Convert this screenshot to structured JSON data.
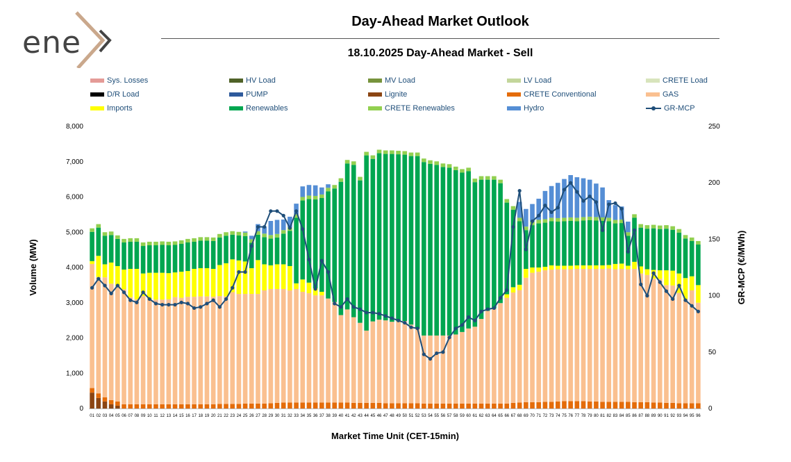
{
  "logo": {
    "text": "ene"
  },
  "header": {
    "title": "Day-Ahead Market Outlook",
    "subtitle": "18.10.2025  Day-Ahead Market - Sell"
  },
  "legend": [
    {
      "label": "Sys. Losses",
      "color": "#e49b97",
      "kind": "bar"
    },
    {
      "label": "HV Load",
      "color": "#4f6228",
      "kind": "bar"
    },
    {
      "label": "MV Load",
      "color": "#77933c",
      "kind": "bar"
    },
    {
      "label": "LV Load",
      "color": "#c3d69b",
      "kind": "bar"
    },
    {
      "label": "CRETE Load",
      "color": "#d8e4bc",
      "kind": "bar"
    },
    {
      "label": "D/R Load",
      "color": "#000000",
      "kind": "bar"
    },
    {
      "label": "PUMP",
      "color": "#2e5a9c",
      "kind": "bar"
    },
    {
      "label": "Lignite",
      "color": "#8b4513",
      "kind": "bar"
    },
    {
      "label": "CRETE Conventional",
      "color": "#e46c0a",
      "kind": "bar"
    },
    {
      "label": "GAS",
      "color": "#fac090",
      "kind": "bar"
    },
    {
      "label": "Imports",
      "color": "#ffff00",
      "kind": "bar"
    },
    {
      "label": "Renewables",
      "color": "#00a650",
      "kind": "bar"
    },
    {
      "label": "CRETE Renewables",
      "color": "#92d050",
      "kind": "bar"
    },
    {
      "label": "Hydro",
      "color": "#558ed5",
      "kind": "bar"
    },
    {
      "label": "GR-MCP",
      "color": "#1f4e79",
      "kind": "line"
    }
  ],
  "chart_data": {
    "type": "bar",
    "stacked": true,
    "xlabel": "Market Time Unit (CET-15min)",
    "ylabel": "Volume (MW)",
    "y2label": "GR-MCP (€/MWh)",
    "ylim": [
      0,
      8000
    ],
    "yticks": [
      "0",
      "1,000",
      "2,000",
      "3,000",
      "4,000",
      "5,000",
      "6,000",
      "7,000",
      "8,000"
    ],
    "y2lim": [
      0,
      250
    ],
    "y2ticks": [
      "0",
      "50",
      "100",
      "150",
      "200",
      "250"
    ],
    "categories": [
      "01",
      "02",
      "03",
      "04",
      "05",
      "06",
      "07",
      "08",
      "09",
      "10",
      "11",
      "12",
      "13",
      "14",
      "15",
      "16",
      "17",
      "18",
      "19",
      "20",
      "21",
      "22",
      "23",
      "24",
      "25",
      "26",
      "27",
      "28",
      "29",
      "30",
      "31",
      "32",
      "33",
      "34",
      "35",
      "36",
      "37",
      "38",
      "39",
      "40",
      "41",
      "42",
      "43",
      "44",
      "45",
      "46",
      "47",
      "48",
      "49",
      "50",
      "51",
      "52",
      "53",
      "54",
      "55",
      "56",
      "57",
      "58",
      "59",
      "60",
      "61",
      "62",
      "63",
      "64",
      "65",
      "66",
      "67",
      "68",
      "69",
      "70",
      "71",
      "72",
      "73",
      "74",
      "75",
      "76",
      "77",
      "78",
      "79",
      "80",
      "81",
      "82",
      "83",
      "84",
      "85",
      "86",
      "87",
      "88",
      "89",
      "90",
      "91",
      "92",
      "93",
      "94",
      "95",
      "96"
    ],
    "series": [
      {
        "name": "Lignite",
        "color": "#8b4513",
        "values": [
          450,
          300,
          200,
          120,
          80,
          0,
          0,
          0,
          0,
          0,
          0,
          0,
          0,
          0,
          0,
          0,
          0,
          0,
          0,
          0,
          0,
          0,
          0,
          0,
          0,
          0,
          0,
          0,
          0,
          0,
          0,
          0,
          0,
          0,
          0,
          0,
          0,
          0,
          0,
          0,
          0,
          0,
          0,
          0,
          0,
          0,
          0,
          0,
          0,
          0,
          0,
          0,
          0,
          0,
          0,
          0,
          0,
          0,
          0,
          0,
          0,
          0,
          0,
          0,
          0,
          0,
          0,
          0,
          0,
          0,
          0,
          0,
          0,
          0,
          0,
          0,
          0,
          0,
          0,
          0,
          0,
          0,
          0,
          0,
          0,
          0,
          0,
          0,
          0,
          0,
          0,
          0,
          0,
          0,
          0,
          0
        ]
      },
      {
        "name": "CRETE Conventional",
        "color": "#e46c0a",
        "values": [
          130,
          130,
          120,
          120,
          120,
          120,
          120,
          120,
          120,
          120,
          120,
          120,
          120,
          120,
          120,
          120,
          120,
          120,
          120,
          120,
          130,
          130,
          130,
          130,
          140,
          140,
          140,
          140,
          150,
          160,
          170,
          170,
          170,
          170,
          170,
          170,
          170,
          170,
          170,
          170,
          170,
          160,
          160,
          160,
          160,
          160,
          150,
          150,
          150,
          150,
          150,
          150,
          140,
          140,
          140,
          140,
          140,
          140,
          140,
          140,
          140,
          140,
          140,
          140,
          140,
          140,
          160,
          170,
          180,
          180,
          180,
          190,
          190,
          200,
          210,
          210,
          210,
          210,
          200,
          200,
          190,
          190,
          190,
          190,
          190,
          180,
          180,
          180,
          170,
          170,
          160,
          160,
          150,
          150,
          150,
          150
        ]
      },
      {
        "name": "GAS",
        "color": "#fac090",
        "values": [
          3520,
          3300,
          3400,
          3300,
          3280,
          3260,
          3040,
          2980,
          3070,
          2990,
          2970,
          2970,
          2980,
          3040,
          3020,
          3050,
          3050,
          3060,
          3060,
          3050,
          3060,
          3050,
          3170,
          3120,
          3110,
          3110,
          3110,
          3210,
          3240,
          3230,
          3220,
          3180,
          3220,
          3140,
          3100,
          3040,
          3040,
          2950,
          2850,
          2480,
          2640,
          2430,
          2270,
          2050,
          2310,
          2360,
          2350,
          2310,
          2330,
          2330,
          2230,
          2110,
          1930,
          1930,
          1930,
          1930,
          1930,
          1960,
          2030,
          2130,
          2180,
          2400,
          2630,
          2700,
          2850,
          3000,
          3130,
          3190,
          3530,
          3670,
          3700,
          3730,
          3750,
          3750,
          3740,
          3740,
          3750,
          3750,
          3760,
          3760,
          3770,
          3780,
          3760,
          3770,
          3760,
          3780,
          3650,
          3610,
          3510,
          3510,
          3340,
          3330,
          3130,
          2950,
          3200,
          2850
        ]
      },
      {
        "name": "Imports",
        "color": "#ffff00",
        "values": [
          80,
          600,
          370,
          600,
          560,
          560,
          800,
          860,
          640,
          740,
          760,
          760,
          740,
          700,
          740,
          730,
          790,
          800,
          800,
          790,
          880,
          940,
          930,
          950,
          920,
          730,
          960,
          740,
          670,
          700,
          700,
          690,
          160,
          350,
          300,
          200,
          100,
          0,
          0,
          0,
          0,
          0,
          0,
          0,
          0,
          0,
          0,
          0,
          0,
          0,
          0,
          0,
          0,
          0,
          0,
          0,
          0,
          0,
          0,
          0,
          0,
          0,
          0,
          0,
          0,
          100,
          150,
          150,
          250,
          150,
          120,
          100,
          120,
          100,
          100,
          100,
          100,
          100,
          100,
          100,
          100,
          100,
          150,
          150,
          100,
          200,
          200,
          160,
          250,
          240,
          420,
          420,
          550,
          600,
          400,
          500
        ]
      },
      {
        "name": "Renewables",
        "color": "#00a650",
        "values": [
          830,
          800,
          810,
          780,
          770,
          770,
          770,
          770,
          780,
          780,
          780,
          790,
          790,
          780,
          790,
          810,
          770,
          780,
          780,
          790,
          780,
          780,
          700,
          710,
          720,
          720,
          720,
          770,
          760,
          760,
          870,
          1000,
          1860,
          2240,
          2370,
          2520,
          2660,
          3040,
          3220,
          3780,
          4140,
          4320,
          4040,
          4970,
          4610,
          4720,
          4720,
          4760,
          4730,
          4720,
          4780,
          4900,
          4920,
          4870,
          4840,
          4780,
          4760,
          4660,
          4520,
          4460,
          4100,
          3950,
          3720,
          3650,
          3400,
          2600,
          2200,
          1800,
          1100,
          1200,
          1250,
          1250,
          1250,
          1250,
          1260,
          1270,
          1250,
          1270,
          1280,
          1270,
          1260,
          1240,
          1150,
          1150,
          850,
          1250,
          1100,
          1150,
          1180,
          1170,
          1180,
          1160,
          1160,
          1120,
          1000,
          1150
        ]
      },
      {
        "name": "CRETE Renewables",
        "color": "#92d050",
        "values": [
          100,
          100,
          100,
          100,
          100,
          100,
          100,
          100,
          100,
          100,
          100,
          100,
          100,
          100,
          100,
          100,
          100,
          100,
          100,
          100,
          100,
          100,
          100,
          100,
          100,
          100,
          100,
          100,
          100,
          100,
          100,
          100,
          100,
          100,
          100,
          100,
          100,
          100,
          100,
          100,
          100,
          100,
          100,
          100,
          100,
          100,
          100,
          100,
          100,
          100,
          100,
          100,
          100,
          100,
          100,
          100,
          100,
          100,
          100,
          100,
          100,
          100,
          100,
          100,
          100,
          100,
          100,
          100,
          100,
          100,
          100,
          100,
          100,
          100,
          100,
          100,
          100,
          100,
          100,
          100,
          100,
          100,
          100,
          100,
          100,
          100,
          100,
          100,
          100,
          100,
          100,
          100,
          100,
          100,
          100,
          100
        ]
      },
      {
        "name": "Hydro",
        "color": "#558ed5",
        "values": [
          0,
          0,
          0,
          0,
          0,
          0,
          0,
          0,
          0,
          0,
          0,
          0,
          0,
          0,
          0,
          0,
          0,
          0,
          0,
          0,
          0,
          0,
          0,
          0,
          30,
          100,
          200,
          200,
          400,
          400,
          300,
          300,
          300,
          300,
          300,
          300,
          200,
          100,
          0,
          0,
          0,
          0,
          0,
          0,
          0,
          0,
          0,
          0,
          0,
          0,
          0,
          0,
          0,
          0,
          0,
          0,
          0,
          0,
          0,
          0,
          0,
          0,
          0,
          0,
          0,
          0,
          0,
          450,
          500,
          500,
          600,
          800,
          900,
          1000,
          1100,
          1200,
          1150,
          1100,
          1050,
          950,
          850,
          500,
          420,
          370,
          300,
          0,
          0,
          0,
          0,
          0,
          0,
          0,
          0,
          0,
          0,
          0
        ]
      },
      {
        "name": "GR-MCP",
        "color": "#1f4e79",
        "type": "line",
        "axis": "y2",
        "values": [
          107,
          115,
          109,
          102,
          109,
          103,
          96,
          94,
          103,
          97,
          93,
          92,
          92,
          92,
          94,
          93,
          89,
          90,
          93,
          96,
          90,
          97,
          107,
          121,
          121,
          144,
          161,
          161,
          175,
          175,
          171,
          160,
          175,
          159,
          132,
          106,
          131,
          121,
          93,
          90,
          97,
          90,
          88,
          85,
          85,
          84,
          82,
          80,
          78,
          76,
          72,
          71,
          48,
          44,
          49,
          50,
          63,
          71,
          74,
          81,
          78,
          86,
          88,
          89,
          98,
          105,
          161,
          193,
          141,
          166,
          171,
          180,
          174,
          178,
          194,
          200,
          192,
          184,
          188,
          183,
          158,
          181,
          182,
          177,
          139,
          158,
          110,
          100,
          120,
          112,
          104,
          97,
          109,
          96,
          91,
          86
        ]
      }
    ]
  }
}
